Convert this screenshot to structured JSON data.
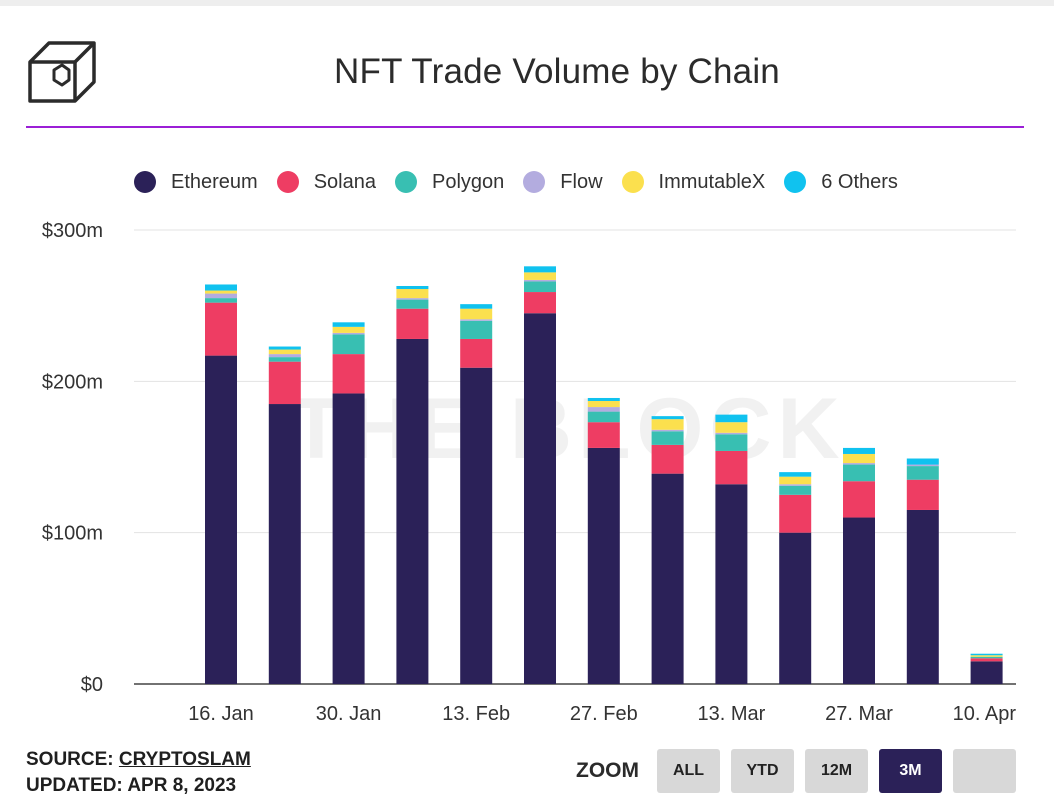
{
  "title": "NFT Trade Volume by Chain",
  "footer": {
    "source_label": "SOURCE:",
    "source_link": "CRYPTOSLAM",
    "updated": "UPDATED: APR 8, 2023"
  },
  "zoom": {
    "label": "ZOOM",
    "buttons": [
      "ALL",
      "YTD",
      "12M",
      "3M",
      ""
    ],
    "active": "3M"
  },
  "chart_data": {
    "type": "bar",
    "stacked": true,
    "legend_position": "top-left",
    "grid": true,
    "ylim": [
      0,
      300
    ],
    "y_ticks": [
      0,
      100,
      200,
      300
    ],
    "y_tick_labels": [
      "$0",
      "$100m",
      "$200m",
      "$300m"
    ],
    "x_tick_labels": [
      "16. Jan",
      "30. Jan",
      "13. Feb",
      "27. Feb",
      "13. Mar",
      "27. Mar",
      "10. Apr"
    ],
    "categories": [
      "16. Jan",
      "23. Jan",
      "30. Jan",
      "6. Feb",
      "13. Feb",
      "20. Feb",
      "27. Feb",
      "6. Mar",
      "13. Mar",
      "20. Mar",
      "27. Mar",
      "3. Apr",
      "10. Apr"
    ],
    "series": [
      {
        "name": "Ethereum",
        "color": "#2b2158",
        "values": [
          217,
          185,
          192,
          228,
          209,
          245,
          156,
          139,
          132,
          100,
          110,
          115,
          15
        ]
      },
      {
        "name": "Solana",
        "color": "#ee3d63",
        "values": [
          35,
          28,
          26,
          20,
          19,
          14,
          17,
          19,
          22,
          25,
          24,
          20,
          2
        ]
      },
      {
        "name": "Polygon",
        "color": "#38bfb2",
        "values": [
          3,
          3,
          13,
          6,
          12,
          7,
          7,
          9,
          11,
          6,
          11,
          9,
          1
        ]
      },
      {
        "name": "Flow",
        "color": "#b3acdf",
        "values": [
          3,
          2,
          1,
          1,
          1,
          1,
          3,
          1,
          1,
          1,
          1,
          1,
          0
        ]
      },
      {
        "name": "ImmutableX",
        "color": "#fbe04e",
        "values": [
          2,
          3,
          4,
          6,
          7,
          5,
          4,
          7,
          7,
          5,
          6,
          0,
          1
        ]
      },
      {
        "name": "6 Others",
        "color": "#10c2ef",
        "values": [
          4,
          2,
          3,
          2,
          3,
          4,
          2,
          2,
          5,
          3,
          4,
          4,
          1
        ]
      }
    ]
  }
}
